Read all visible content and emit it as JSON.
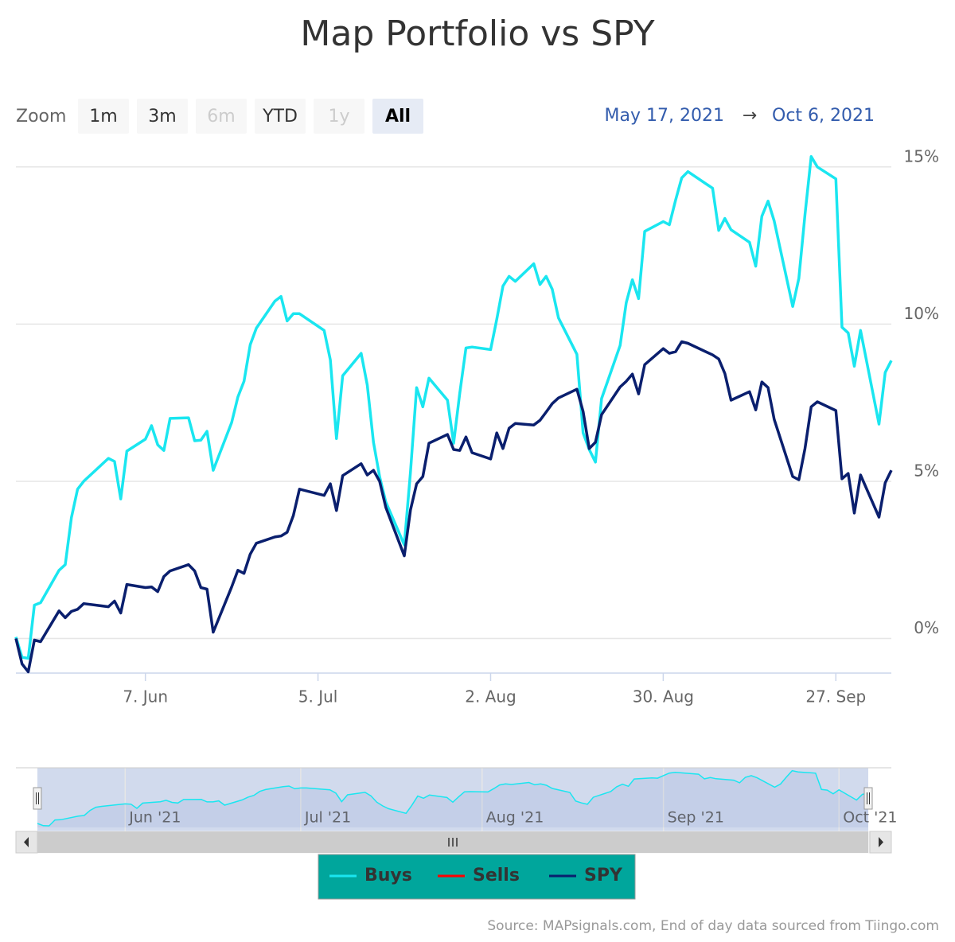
{
  "chart_data": {
    "type": "line",
    "title": "Map Portfolio vs SPY",
    "range_selector": {
      "label": "Zoom",
      "buttons": [
        {
          "label": "1m",
          "state": "normal"
        },
        {
          "label": "3m",
          "state": "normal"
        },
        {
          "label": "6m",
          "state": "disabled"
        },
        {
          "label": "YTD",
          "state": "normal"
        },
        {
          "label": "1y",
          "state": "disabled"
        },
        {
          "label": "All",
          "state": "selected"
        }
      ],
      "from": "May 17, 2021",
      "arrow": "→",
      "to": "Oct 6, 2021"
    },
    "x": [
      "2021-05-17",
      "2021-05-18",
      "2021-05-19",
      "2021-05-20",
      "2021-05-21",
      "2021-05-24",
      "2021-05-25",
      "2021-05-26",
      "2021-05-27",
      "2021-05-28",
      "2021-06-01",
      "2021-06-02",
      "2021-06-03",
      "2021-06-04",
      "2021-06-07",
      "2021-06-08",
      "2021-06-09",
      "2021-06-10",
      "2021-06-11",
      "2021-06-14",
      "2021-06-15",
      "2021-06-16",
      "2021-06-17",
      "2021-06-18",
      "2021-06-21",
      "2021-06-22",
      "2021-06-23",
      "2021-06-24",
      "2021-06-25",
      "2021-06-28",
      "2021-06-29",
      "2021-06-30",
      "2021-07-01",
      "2021-07-02",
      "2021-07-06",
      "2021-07-07",
      "2021-07-08",
      "2021-07-09",
      "2021-07-12",
      "2021-07-13",
      "2021-07-14",
      "2021-07-15",
      "2021-07-16",
      "2021-07-19",
      "2021-07-20",
      "2021-07-21",
      "2021-07-22",
      "2021-07-23",
      "2021-07-26",
      "2021-07-27",
      "2021-07-28",
      "2021-07-29",
      "2021-07-30",
      "2021-08-02",
      "2021-08-03",
      "2021-08-04",
      "2021-08-05",
      "2021-08-06",
      "2021-08-09",
      "2021-08-10",
      "2021-08-11",
      "2021-08-12",
      "2021-08-13",
      "2021-08-16",
      "2021-08-17",
      "2021-08-18",
      "2021-08-19",
      "2021-08-20",
      "2021-08-23",
      "2021-08-24",
      "2021-08-25",
      "2021-08-26",
      "2021-08-27",
      "2021-08-30",
      "2021-08-31",
      "2021-09-01",
      "2021-09-02",
      "2021-09-03",
      "2021-09-07",
      "2021-09-08",
      "2021-09-09",
      "2021-09-10",
      "2021-09-13",
      "2021-09-14",
      "2021-09-15",
      "2021-09-16",
      "2021-09-17",
      "2021-09-20",
      "2021-09-21",
      "2021-09-22",
      "2021-09-23",
      "2021-09-24",
      "2021-09-27",
      "2021-09-28",
      "2021-09-29",
      "2021-09-30",
      "2021-10-01",
      "2021-10-04",
      "2021-10-05",
      "2021-10-06"
    ],
    "series": [
      {
        "name": "Buys",
        "color": "#1ae6f0",
        "values": [
          0.05,
          -0.6,
          -0.63,
          1.06,
          1.14,
          2.17,
          2.35,
          3.84,
          4.75,
          5.0,
          5.73,
          5.63,
          4.44,
          5.96,
          6.34,
          6.77,
          6.16,
          5.98,
          7.0,
          7.02,
          6.29,
          6.31,
          6.59,
          5.35,
          6.87,
          7.68,
          8.18,
          9.34,
          9.87,
          10.73,
          10.88,
          10.1,
          10.33,
          10.33,
          9.8,
          8.86,
          6.36,
          8.36,
          9.07,
          8.06,
          6.24,
          5.15,
          4.34,
          2.98,
          5.3,
          7.98,
          7.37,
          8.28,
          7.58,
          6.21,
          7.8,
          9.24,
          9.27,
          9.19,
          10.15,
          11.21,
          11.52,
          11.36,
          11.92,
          11.26,
          11.52,
          11.11,
          10.2,
          9.04,
          6.54,
          6.01,
          5.61,
          7.63,
          9.32,
          10.68,
          11.41,
          10.81,
          12.95,
          13.26,
          13.16,
          13.94,
          14.65,
          14.85,
          14.32,
          12.98,
          13.36,
          13.0,
          12.6,
          11.84,
          13.43,
          13.91,
          13.28,
          10.56,
          11.46,
          13.48,
          15.33,
          15.0,
          14.62,
          9.9,
          9.72,
          8.66,
          9.8,
          6.82,
          8.46,
          8.84
        ]
      },
      {
        "name": "Sells",
        "color": "#ff0000",
        "values": [
          null,
          null,
          null,
          null,
          null,
          null,
          null,
          null,
          null,
          null,
          null,
          null,
          null,
          null,
          null,
          null,
          null,
          null,
          null,
          null,
          null,
          null,
          null,
          null,
          null,
          null,
          null,
          null,
          null,
          null,
          null,
          null,
          null,
          null,
          null,
          null,
          null,
          null,
          null,
          null,
          null,
          null,
          null,
          null,
          null,
          null,
          null,
          null,
          null,
          null,
          null,
          null,
          null,
          null,
          null,
          null,
          null,
          null,
          null,
          null,
          null,
          null,
          null,
          null,
          null,
          null,
          null,
          null,
          null,
          null,
          null,
          null,
          null,
          null,
          null,
          null,
          null,
          null,
          null,
          null,
          null,
          null,
          null,
          null,
          null,
          null,
          null,
          null,
          null,
          null,
          null,
          null,
          null,
          null,
          null,
          null,
          null,
          null,
          null,
          null
        ]
      },
      {
        "name": "SPY",
        "color": "#0a1f6e",
        "values": [
          0,
          -0.81,
          -1.06,
          -0.05,
          -0.1,
          0.88,
          0.66,
          0.86,
          0.93,
          1.11,
          1.01,
          1.19,
          0.81,
          1.72,
          1.62,
          1.64,
          1.49,
          1.97,
          2.15,
          2.35,
          2.15,
          1.62,
          1.57,
          0.2,
          1.64,
          2.17,
          2.07,
          2.68,
          3.03,
          3.23,
          3.26,
          3.38,
          3.91,
          4.75,
          4.55,
          4.92,
          4.07,
          5.18,
          5.56,
          5.2,
          5.35,
          5.0,
          4.17,
          2.63,
          4.09,
          4.92,
          5.15,
          6.21,
          6.49,
          6.01,
          5.98,
          6.41,
          5.91,
          5.71,
          6.54,
          6.04,
          6.69,
          6.84,
          6.79,
          6.94,
          7.2,
          7.47,
          7.65,
          7.93,
          7.22,
          6.04,
          6.24,
          7.12,
          8.0,
          8.18,
          8.41,
          7.78,
          8.71,
          9.22,
          9.07,
          9.12,
          9.44,
          9.39,
          9.02,
          8.89,
          8.43,
          7.58,
          7.85,
          7.27,
          8.16,
          7.98,
          6.97,
          5.15,
          5.05,
          6.04,
          7.37,
          7.53,
          7.25,
          5.08,
          5.25,
          3.99,
          5.2,
          3.86,
          4.95,
          5.35
        ]
      }
    ],
    "xlim": [
      "2021-05-17",
      "2021-10-06"
    ],
    "xticks": [
      {
        "value": "2021-06-07",
        "label": "7. Jun"
      },
      {
        "value": "2021-07-05",
        "label": "5. Jul"
      },
      {
        "value": "2021-08-02",
        "label": "2. Aug"
      },
      {
        "value": "2021-08-30",
        "label": "30. Aug"
      },
      {
        "value": "2021-09-27",
        "label": "27. Sep"
      }
    ],
    "ylim": [
      -1.1,
      15.5
    ],
    "yticks": [
      {
        "value": 0,
        "label": "0%"
      },
      {
        "value": 5,
        "label": "5%"
      },
      {
        "value": 10,
        "label": "10%"
      },
      {
        "value": 15,
        "label": "15%"
      }
    ],
    "grid": true,
    "navigator_xticks": [
      {
        "value": "2021-06-01",
        "label": "Jun '21"
      },
      {
        "value": "2021-07-01",
        "label": "Jul '21"
      },
      {
        "value": "2021-08-01",
        "label": "Aug '21"
      },
      {
        "value": "2021-09-01",
        "label": "Sep '21"
      },
      {
        "value": "2021-10-01",
        "label": "Oct '21"
      }
    ],
    "legend": "bottom",
    "source": "Source: MAPsignals.com, End of day data sourced from Tiingo.com"
  }
}
